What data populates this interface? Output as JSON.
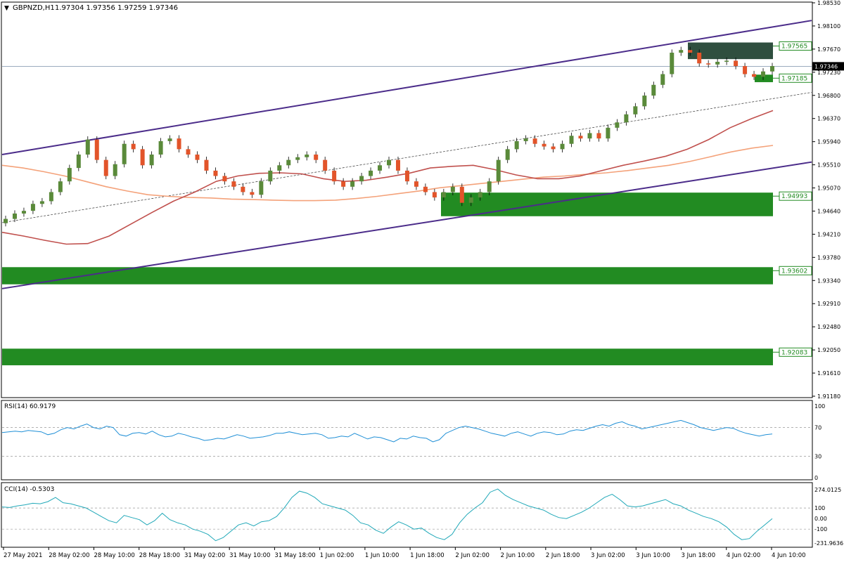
{
  "header": {
    "symbol": "GBPNZD,H1",
    "ohlc": "1.97304 1.97356 1.97259 1.97346"
  },
  "chart_data": [
    {
      "type": "candlestick",
      "title": "GBPNZD,H1",
      "y_ticks": [
        "1.98530",
        "1.98100",
        "1.97670",
        "1.97230",
        "1.96800",
        "1.96370",
        "1.95940",
        "1.95510",
        "1.95070",
        "1.94640",
        "1.94210",
        "1.93780",
        "1.93340",
        "1.92910",
        "1.92480",
        "1.92050",
        "1.91610",
        "1.91180"
      ],
      "ylim": [
        1.9118,
        1.9853
      ],
      "x_ticks": [
        "27 May 2021",
        "28 May 02:00",
        "28 May 10:00",
        "28 May 18:00",
        "31 May 02:00",
        "31 May 10:00",
        "31 May 18:00",
        "1 Jun 02:00",
        "1 Jun 10:00",
        "1 Jun 18:00",
        "2 Jun 02:00",
        "2 Jun 10:00",
        "2 Jun 18:00",
        "3 Jun 02:00",
        "3 Jun 10:00",
        "3 Jun 18:00",
        "4 Jun 02:00",
        "4 Jun 10:00"
      ],
      "current_price": "1.97346",
      "zone_labels": [
        "1.97565",
        "1.97185",
        "1.94993",
        "1.93602",
        "1.92083"
      ],
      "zones": [
        {
          "label": "1.97565",
          "low": 1.9748,
          "high": 1.9779,
          "color": "#2f4f3f"
        },
        {
          "label": "1.97185",
          "low": 1.9705,
          "high": 1.9719,
          "color": "#228b22"
        },
        {
          "label": "1.94993",
          "low": 1.9455,
          "high": 1.9499,
          "color": "#228b22"
        },
        {
          "label": "1.93602",
          "low": 1.9328,
          "high": 1.936,
          "color": "#228b22"
        },
        {
          "label": "1.92083",
          "low": 1.9177,
          "high": 1.9208,
          "color": "#228b22"
        }
      ],
      "channel": {
        "upper": [
          1.957,
          1.982
        ],
        "lower": [
          1.932,
          1.9556
        ],
        "mid": [
          1.9443,
          1.9686
        ]
      },
      "ma_red": [
        1.9425,
        1.9418,
        1.941,
        1.9403,
        1.9404,
        1.9418,
        1.944,
        1.9462,
        1.9483,
        1.95,
        1.952,
        1.953,
        1.9535,
        1.9536,
        1.9534,
        1.9525,
        1.952,
        1.9522,
        1.9528,
        1.9535,
        1.9545,
        1.9548,
        1.955,
        1.9542,
        1.9532,
        1.9525,
        1.9525,
        1.953,
        1.954,
        1.955,
        1.9558,
        1.9567,
        1.958,
        1.9598,
        1.962,
        1.9637,
        1.9652
      ],
      "ma_orange": [
        1.955,
        1.9545,
        1.9538,
        1.953,
        1.952,
        1.951,
        1.9502,
        1.9495,
        1.9492,
        1.949,
        1.9489,
        1.9487,
        1.9486,
        1.9485,
        1.9484,
        1.9484,
        1.9485,
        1.9488,
        1.9492,
        1.9497,
        1.9502,
        1.9508,
        1.9512,
        1.9516,
        1.952,
        1.9524,
        1.9528,
        1.953,
        1.9533,
        1.9536,
        1.954,
        1.9545,
        1.955,
        1.9557,
        1.9566,
        1.9575,
        1.9582,
        1.9587
      ],
      "candles_close": [
        1.945,
        1.946,
        1.9465,
        1.9478,
        1.9483,
        1.95,
        1.952,
        1.9545,
        1.957,
        1.9598,
        1.956,
        1.953,
        1.9552,
        1.959,
        1.958,
        1.955,
        1.957,
        1.9595,
        1.96,
        1.958,
        1.957,
        1.956,
        1.954,
        1.953,
        1.952,
        1.951,
        1.95,
        1.9495,
        1.952,
        1.954,
        1.955,
        1.956,
        1.9565,
        1.957,
        1.956,
        1.954,
        1.952,
        1.951,
        1.952,
        1.953,
        1.954,
        1.955,
        1.956,
        1.954,
        1.952,
        1.951,
        1.95,
        1.949,
        1.95,
        1.951,
        1.948,
        1.949,
        1.95,
        1.952,
        1.956,
        1.958,
        1.9595,
        1.96,
        1.959,
        1.9585,
        1.958,
        1.959,
        1.9605,
        1.96,
        1.961,
        1.96,
        1.962,
        1.963,
        1.9645,
        1.966,
        1.968,
        1.97,
        1.972,
        1.976,
        1.9765,
        1.976,
        1.974,
        1.9738,
        1.9743,
        1.9745,
        1.9735,
        1.972,
        1.9715,
        1.9725,
        1.9735
      ],
      "rsi": {
        "label": "RSI(14) 60.9179",
        "ticks": [
          "100",
          "70",
          "30",
          "0"
        ],
        "values": [
          63,
          64,
          65,
          64,
          66,
          65,
          64,
          60,
          62,
          67,
          70,
          68,
          72,
          75,
          70,
          68,
          72,
          70,
          60,
          58,
          62,
          63,
          61,
          65,
          60,
          57,
          58,
          62,
          60,
          57,
          55,
          52,
          53,
          55,
          54,
          57,
          60,
          58,
          55,
          56,
          57,
          59,
          62,
          62,
          64,
          62,
          60,
          61,
          62,
          60,
          55,
          56,
          58,
          57,
          62,
          58,
          54,
          57,
          56,
          53,
          50,
          55,
          54,
          58,
          56,
          55,
          50,
          53,
          62,
          66,
          70,
          72,
          70,
          68,
          65,
          62,
          60,
          58,
          62,
          64,
          61,
          58,
          62,
          64,
          63,
          60,
          61,
          65,
          67,
          66,
          69,
          72,
          74,
          72,
          76,
          78,
          74,
          72,
          68,
          70,
          72,
          74,
          76,
          78,
          80,
          77,
          74,
          70,
          68,
          66,
          68,
          70,
          69,
          65,
          62,
          60,
          58,
          60,
          61
        ]
      },
      "cci": {
        "label": "CCI(14) -0.5303",
        "ticks": [
          "274.0125",
          "100",
          "0.00",
          "-100",
          "-231.9636"
        ],
        "values": [
          110,
          105,
          120,
          130,
          145,
          140,
          160,
          200,
          150,
          140,
          120,
          100,
          60,
          20,
          -20,
          -40,
          30,
          10,
          -10,
          -60,
          -20,
          50,
          -10,
          -40,
          -60,
          -100,
          -120,
          -150,
          -210,
          -180,
          -120,
          -60,
          -40,
          -70,
          -30,
          -20,
          20,
          100,
          200,
          260,
          240,
          200,
          140,
          120,
          100,
          80,
          30,
          -40,
          -60,
          -110,
          -140,
          -80,
          -30,
          -60,
          -100,
          -90,
          -140,
          -180,
          -200,
          -150,
          -40,
          40,
          100,
          150,
          250,
          280,
          220,
          180,
          150,
          120,
          100,
          80,
          40,
          10,
          0,
          30,
          60,
          100,
          150,
          200,
          230,
          180,
          120,
          110,
          120,
          140,
          160,
          180,
          140,
          120,
          80,
          50,
          20,
          0,
          -30,
          -80,
          -150,
          -200,
          -190,
          -120,
          -60,
          0
        ]
      }
    }
  ]
}
